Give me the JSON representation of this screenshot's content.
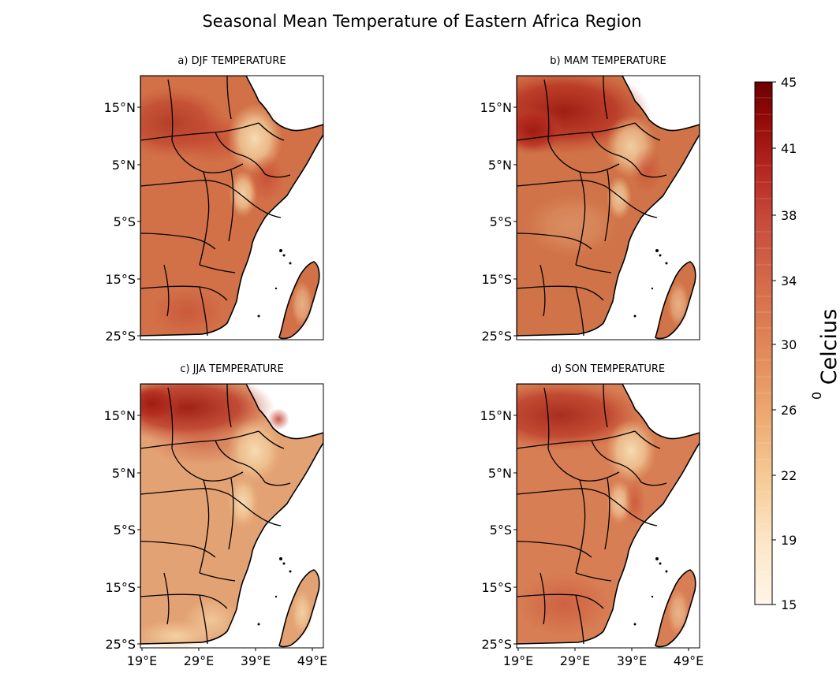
{
  "figure": {
    "title": "Seasonal Mean Temperature of Eastern Africa Region"
  },
  "panels": [
    {
      "id": "djf",
      "title": "a) DJF TEMPERATURE",
      "tone": "#d27048"
    },
    {
      "id": "mam",
      "title": "b) MAM TEMPERATURE",
      "tone": "#cf6c44"
    },
    {
      "id": "jja",
      "title": "c) JJA TEMPERATURE",
      "tone": "#df9a6e"
    },
    {
      "id": "son",
      "title": "d) SON TEMPERATURE",
      "tone": "#d77a50"
    }
  ],
  "map_axes": {
    "lat_ticks": [
      "15°N",
      "5°N",
      "5°S",
      "15°S",
      "25°S"
    ],
    "lon_ticks": [
      "19°E",
      "29°E",
      "39°E",
      "49°E"
    ],
    "lon_range": [
      19,
      51
    ],
    "lat_range": [
      -26,
      20
    ]
  },
  "colorbar": {
    "label": "Celcius",
    "label_superscript": "0",
    "min": 15,
    "max": 45,
    "ticks": [
      "45",
      "41",
      "38",
      "34",
      "30",
      "26",
      "22",
      "19",
      "15"
    ],
    "colormap": [
      "#fff6e9",
      "#fde6c6",
      "#f6c894",
      "#eca46c",
      "#e08656",
      "#d4694a",
      "#c7493a",
      "#b3241f",
      "#920a08",
      "#6b0101"
    ]
  },
  "colors": {
    "ocean": "#ffffff",
    "coastline": "#000000",
    "highland": "#f0c89a",
    "hot": "#b8301f"
  }
}
